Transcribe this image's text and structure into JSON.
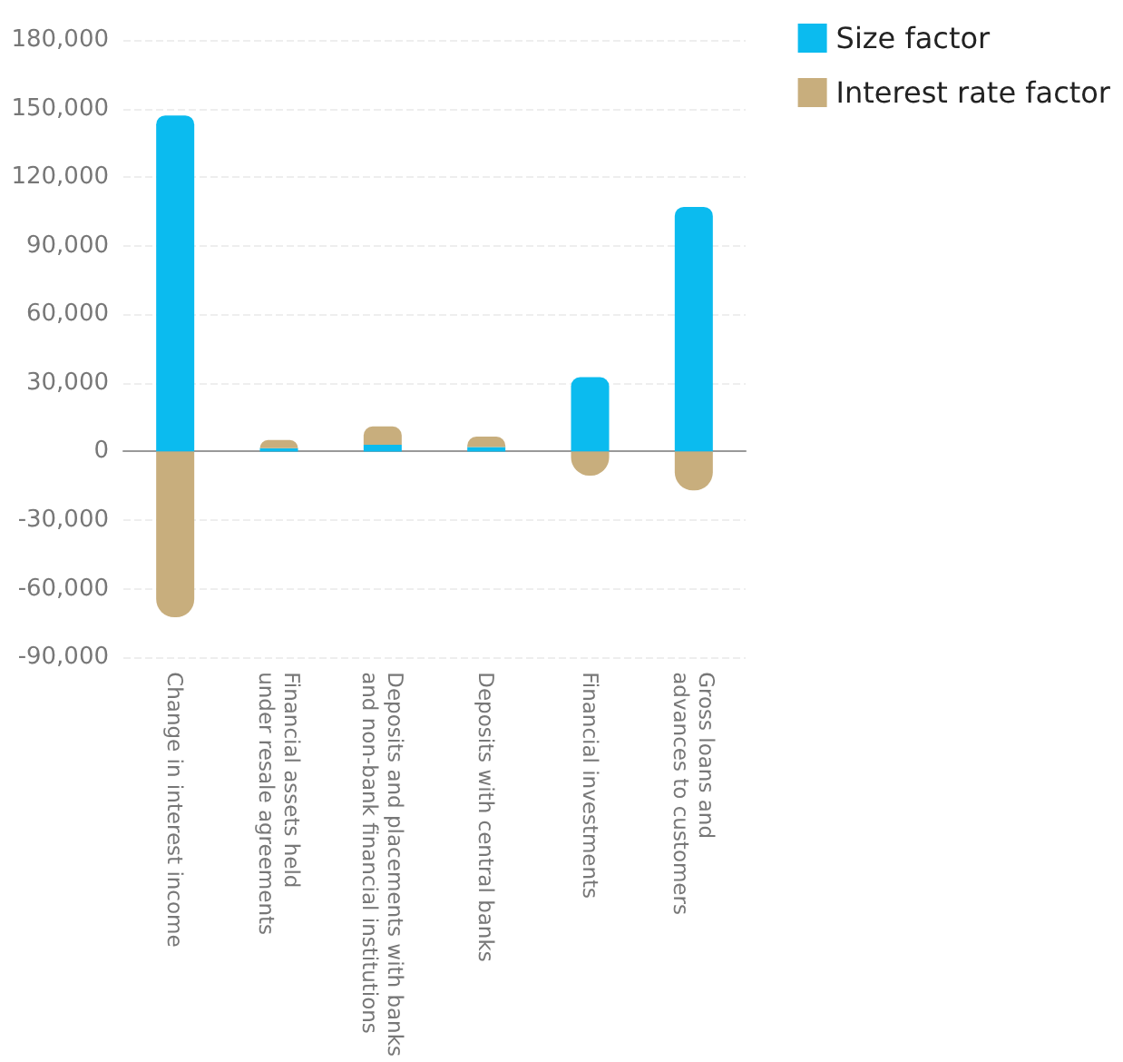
{
  "chart_data": {
    "type": "bar",
    "stacked": true,
    "categories": [
      "Change in interest income",
      "Financial assets held\nunder resale agreements",
      "Deposits and placements with banks\nand non-bank financial institutions",
      "Deposits with central banks",
      "Financial investments",
      "Gross loans and\nadvances to customers"
    ],
    "series": [
      {
        "name": "Size factor",
        "color": "#0bbbef",
        "values": [
          147000,
          1500,
          3000,
          2000,
          32500,
          107000
        ]
      },
      {
        "name": "Interest rate factor",
        "color": "#c8ae7d",
        "values": [
          -72500,
          3500,
          8000,
          4500,
          -10500,
          -17000
        ]
      }
    ],
    "ylim": [
      -90000,
      180000
    ],
    "yticks": [
      {
        "value": -90000,
        "label": "-90,000"
      },
      {
        "value": -60000,
        "label": "-60,000"
      },
      {
        "value": -30000,
        "label": "-30,000"
      },
      0,
      {
        "value": 30000,
        "label": "30,000"
      },
      {
        "value": 60000,
        "label": "60,000"
      },
      {
        "value": 90000,
        "label": "90,000"
      },
      {
        "value": 120000,
        "label": "120,000"
      },
      {
        "value": 150000,
        "label": "150,000"
      },
      {
        "value": 180000,
        "label": "180,000"
      }
    ],
    "grid": "y",
    "legend": "top right"
  }
}
